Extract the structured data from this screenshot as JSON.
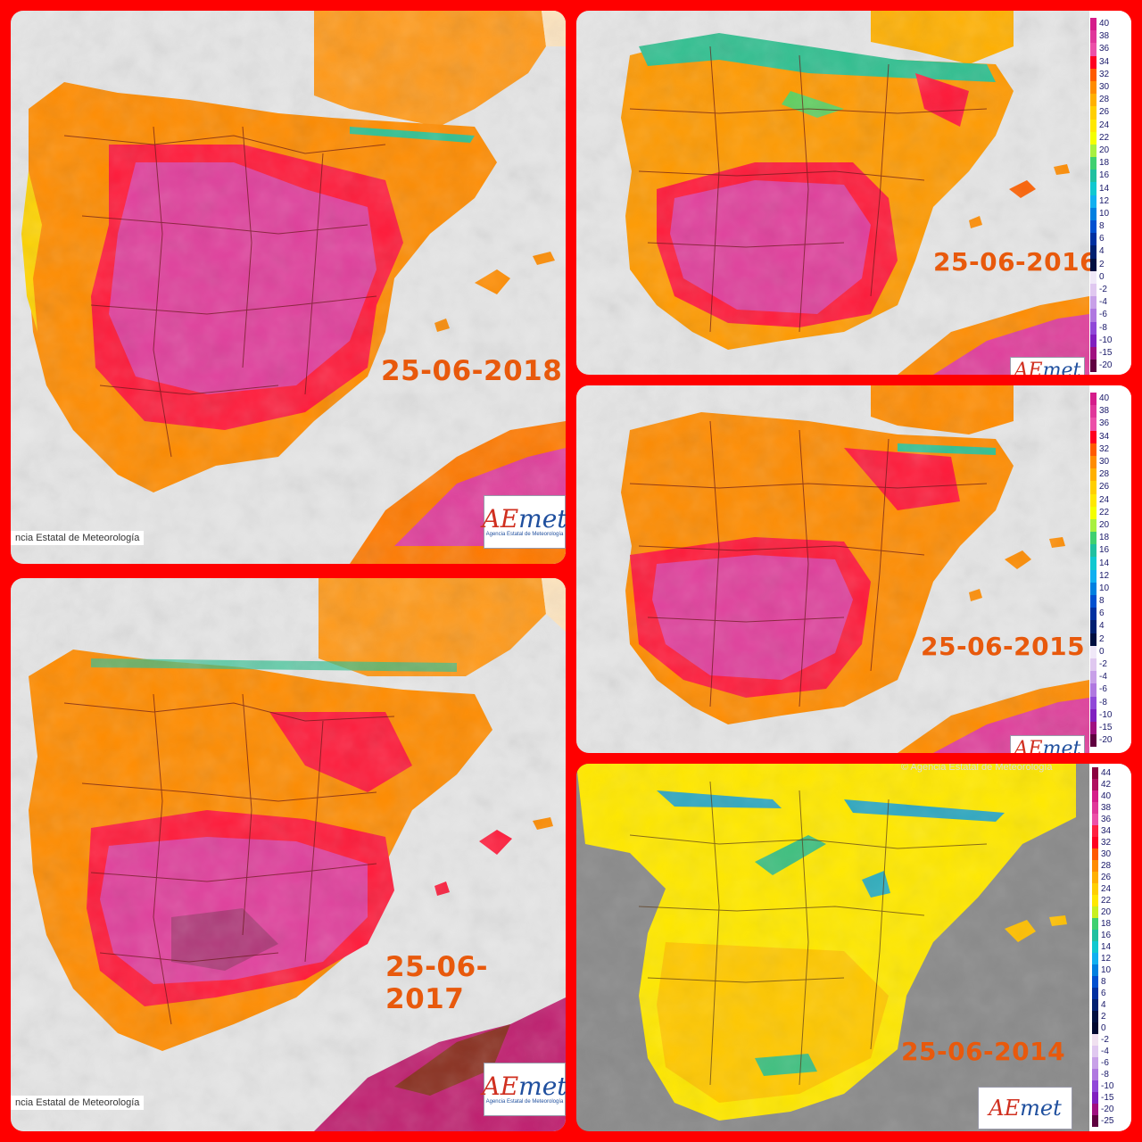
{
  "panels": {
    "p2018": {
      "date": "25-06-2018",
      "credit": "ncia Estatal de Meteorología"
    },
    "p2016": {
      "date": "25-06-2016"
    },
    "p2017": {
      "date": "25-06-2017",
      "credit": "ncia Estatal de Meteorología"
    },
    "p2015": {
      "date": "25-06-2015"
    },
    "p2014": {
      "date": "25-06-2014",
      "copyright": "© Agencia Estatal de Meteorología"
    }
  },
  "logo": {
    "word_a": "AE",
    "word_b": "met",
    "subtitle": "Agencia Estatal de Meteorología"
  },
  "legend": {
    "labels": [
      "40",
      "38",
      "36",
      "34",
      "32",
      "30",
      "28",
      "26",
      "24",
      "22",
      "20",
      "18",
      "16",
      "14",
      "12",
      "10",
      "8",
      "6",
      "4",
      "2",
      "0",
      "-2",
      "-4",
      "-6",
      "-8",
      "-10",
      "-15",
      "-20"
    ],
    "colors": [
      "#d51d8a",
      "#e0389a",
      "#ec50a8",
      "#ff0020",
      "#ff5a00",
      "#ff8c00",
      "#ffb000",
      "#ffcf00",
      "#ffe800",
      "#f4ff00",
      "#a8f040",
      "#40d070",
      "#20c0a0",
      "#10c8d0",
      "#10b0f0",
      "#0080e0",
      "#0050d0",
      "#0030a0",
      "#002070",
      "#001040",
      "#f0e8f8",
      "#e0c8f0",
      "#c8a0e8",
      "#b078e0",
      "#9048d8",
      "#8020c0",
      "#a01080",
      "#600040"
    ],
    "labels_2014": [
      "44",
      "42",
      "40",
      "38",
      "36",
      "34",
      "32",
      "30",
      "28",
      "26",
      "24",
      "22",
      "20",
      "18",
      "16",
      "14",
      "12",
      "10",
      "8",
      "6",
      "4",
      "2",
      "0",
      "-2",
      "-4",
      "-6",
      "-8",
      "-10",
      "-15",
      "-20",
      "-25"
    ],
    "colors_2014": [
      "#8b0040",
      "#b01060",
      "#d51d8a",
      "#e0389a",
      "#ec50a8",
      "#ff2040",
      "#ff0020",
      "#ff5a00",
      "#ff8c00",
      "#ffb000",
      "#ffcf00",
      "#ffe800",
      "#c8f020",
      "#40d070",
      "#20c0a0",
      "#10c8d0",
      "#10b0f0",
      "#0080e0",
      "#0050d0",
      "#0030a0",
      "#002070",
      "#001040",
      "#000830",
      "#f0e0f0",
      "#e0c8f0",
      "#c8a0e8",
      "#b078e0",
      "#9048d8",
      "#8020c0",
      "#a01080",
      "#600040"
    ]
  }
}
